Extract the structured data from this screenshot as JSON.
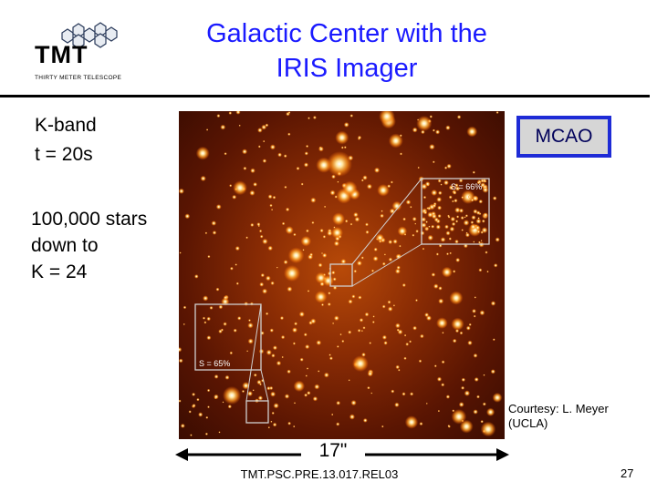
{
  "logo": {
    "wordmark": "TMT",
    "subtitle": "THIRTY METER TELESCOPE"
  },
  "title": {
    "line1": "Galactic Center with the",
    "line2": "IRIS Imager"
  },
  "left_text": {
    "band": "K-band",
    "exposure": "t = 20s",
    "stars_line1": "100,000 stars",
    "stars_line2": "down to",
    "stars_line3": "K = 24"
  },
  "image": {
    "badge": "MCAO",
    "inset_top_label": "S = 66%",
    "inset_left_label": "S = 65%",
    "colors": {
      "glow": "#ffcf7a",
      "border": "#c8c8c8"
    }
  },
  "credit": {
    "line1": "Courtesy: L. Meyer",
    "line2": "(UCLA)"
  },
  "scale": {
    "label": "17\""
  },
  "footer": {
    "doc_id": "TMT.PSC.PRE.13.017.REL03",
    "page": "27"
  }
}
